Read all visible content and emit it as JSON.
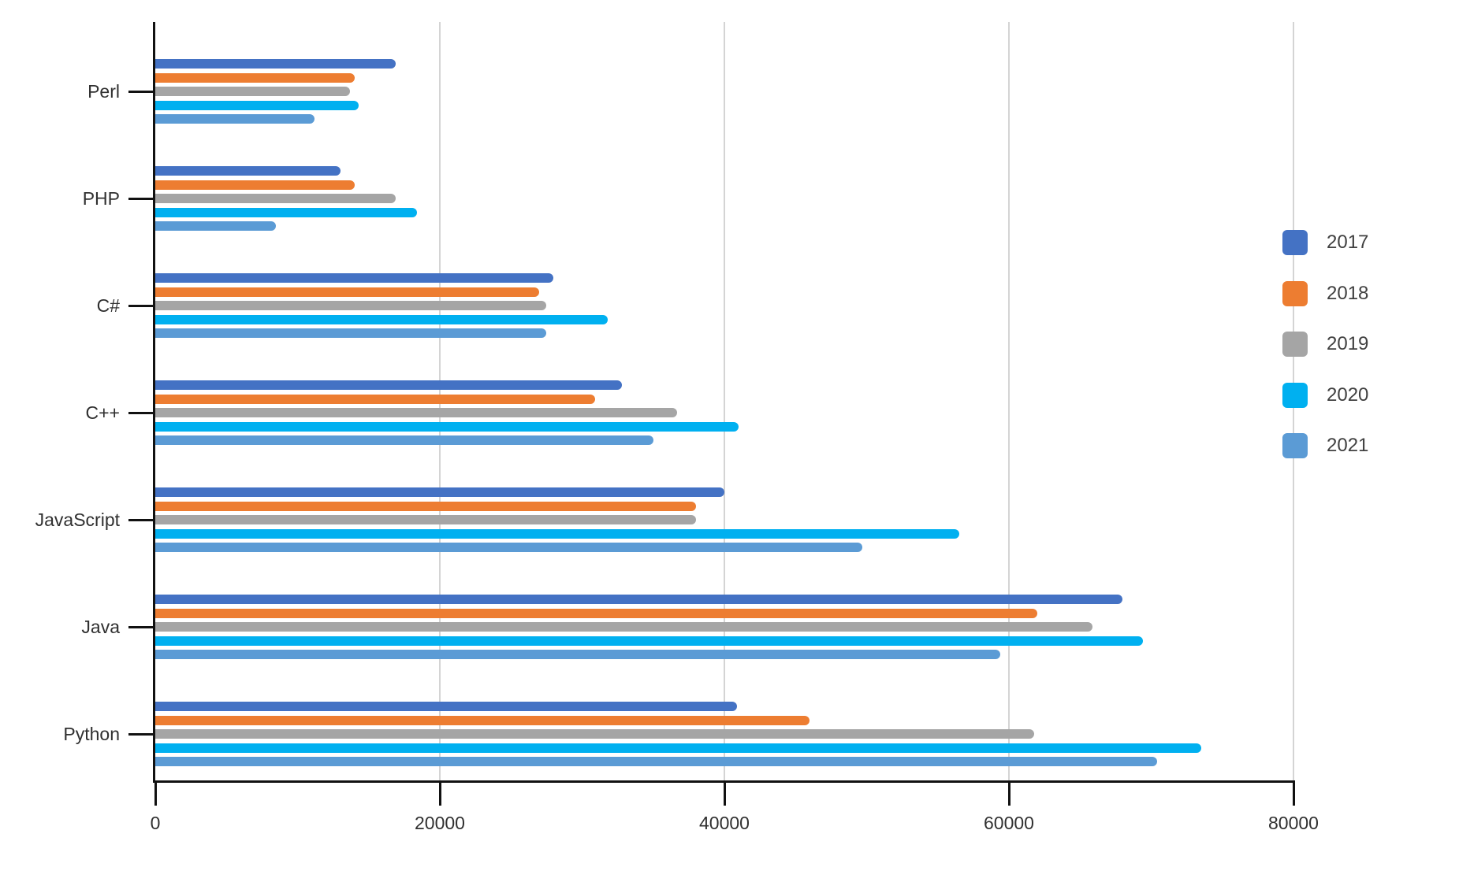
{
  "chart_data": {
    "type": "bar",
    "orientation": "horizontal",
    "title": "",
    "xlabel": "",
    "ylabel": "",
    "grid": true,
    "x_axis": {
      "min": 0,
      "max": 80000,
      "tick_interval": 20000,
      "tick_labels": [
        "0",
        "20000",
        "40000",
        "60000",
        "80000"
      ]
    },
    "categories": [
      "Perl",
      "PHP",
      "C#",
      "C++",
      "JavaScript",
      "Java",
      "Python"
    ],
    "legend": {
      "position": "right",
      "entries": [
        "2017",
        "2018",
        "2019",
        "2020",
        "2021"
      ]
    },
    "series": [
      {
        "name": "2017",
        "color": "#4472C4",
        "values": [
          16900,
          13000,
          28000,
          32800,
          40000,
          68000,
          40900
        ]
      },
      {
        "name": "2018",
        "color": "#ED7D31",
        "values": [
          14000,
          14000,
          27000,
          30900,
          38000,
          62000,
          46000
        ]
      },
      {
        "name": "2019",
        "color": "#A5A5A5",
        "values": [
          13700,
          16900,
          27500,
          36700,
          38000,
          65900,
          61800
        ]
      },
      {
        "name": "2020",
        "color": "#00B0F0",
        "values": [
          14300,
          18400,
          31800,
          41000,
          56500,
          69400,
          73500
        ]
      },
      {
        "name": "2021",
        "color": "#5B9BD5",
        "values": [
          11200,
          8500,
          27500,
          35000,
          49700,
          59400,
          70400
        ]
      }
    ]
  }
}
